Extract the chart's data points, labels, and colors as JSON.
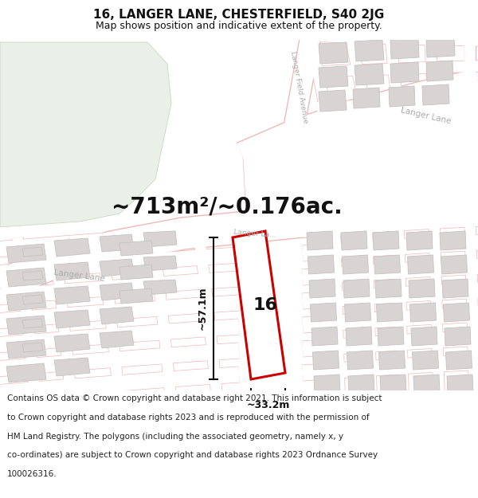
{
  "title": "16, LANGER LANE, CHESTERFIELD, S40 2JG",
  "subtitle": "Map shows position and indicative extent of the property.",
  "footer_lines": [
    "Contains OS data © Crown copyright and database right 2021. This information is subject",
    "to Crown copyright and database rights 2023 and is reproduced with the permission of",
    "HM Land Registry. The polygons (including the associated geometry, namely x, y",
    "co-ordinates) are subject to Crown copyright and database rights 2023 Ordnance Survey",
    "100026316."
  ],
  "area_text": "~713m²/~0.176ac.",
  "label_16": "16",
  "dim_height": "~57.1m",
  "dim_width": "~33.2m",
  "bg_color": "#ffffff",
  "map_bg": "#ffffff",
  "green_color": "#eaf0e8",
  "road_outline_color": "#f0b8b8",
  "road_fill_color": "#f8f0f0",
  "building_fill": "#d8d4d4",
  "building_edge": "#c8c0c0",
  "plot_color": "#cc0000",
  "dim_color": "#111111",
  "text_color": "#111111",
  "road_label_color": "#aaaaaa",
  "title_fontsize": 11,
  "subtitle_fontsize": 9,
  "area_fontsize": 20,
  "label_fontsize": 16,
  "dim_fontsize": 9,
  "footer_fontsize": 7.5
}
